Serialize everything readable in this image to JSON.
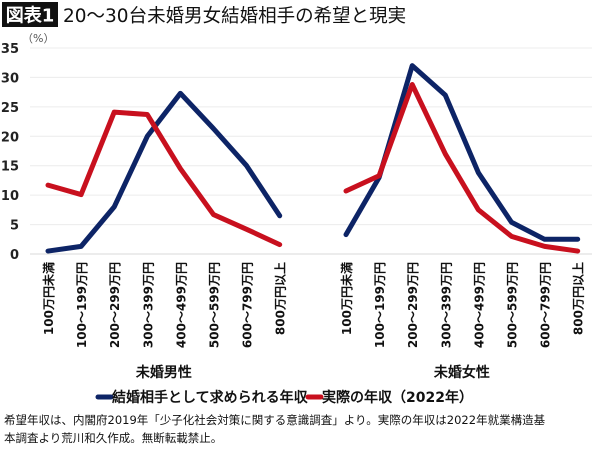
{
  "figure_label": "図表1",
  "chart_data": {
    "type": "line",
    "title": "20〜30台未婚男女結婚相手の希望と現実",
    "ylabel": "（%）",
    "ylim": [
      0,
      35
    ],
    "yticks": [
      0,
      5,
      10,
      15,
      20,
      25,
      30,
      35
    ],
    "grid": true,
    "legend_placement": "bottom",
    "categories": [
      "100万円未満",
      "100〜199万円",
      "200〜299万円",
      "300〜399万円",
      "400〜499万円",
      "500〜599万円",
      "600〜799万円",
      "800万円以上"
    ],
    "panels": [
      {
        "label": "未婚男性",
        "series": [
          {
            "name": "結婚相手として求められる年収",
            "color": "#0d2466",
            "values": [
              0.5,
              1.3,
              8.0,
              20.0,
              27.3,
              21.3,
              15.0,
              6.5
            ]
          },
          {
            "name": "実際の年収（2022年）",
            "color": "#c8101e",
            "values": [
              11.7,
              10.1,
              24.1,
              23.7,
              14.5,
              6.7,
              4.2,
              1.6
            ]
          }
        ]
      },
      {
        "label": "未婚女性",
        "series": [
          {
            "name": "結婚相手として求められる年収",
            "color": "#0d2466",
            "values": [
              3.3,
              13.0,
              32.0,
              27.0,
              13.8,
              5.4,
              2.5,
              2.5
            ]
          },
          {
            "name": "実際の年収（2022年）",
            "color": "#c8101e",
            "values": [
              10.7,
              13.3,
              28.8,
              17.0,
              7.5,
              3.0,
              1.3,
              0.5
            ]
          }
        ]
      }
    ],
    "legend": [
      "結婚相手として求められる年収",
      "実際の年収（2022年）"
    ]
  },
  "footnote": {
    "line1": "希望年収は、内閣府2019年「少子化社会対策に関する意識調査」より。実際の年収は2022年就業構造基",
    "line2": "本調査より荒川和久作成。無断転載禁止。"
  }
}
